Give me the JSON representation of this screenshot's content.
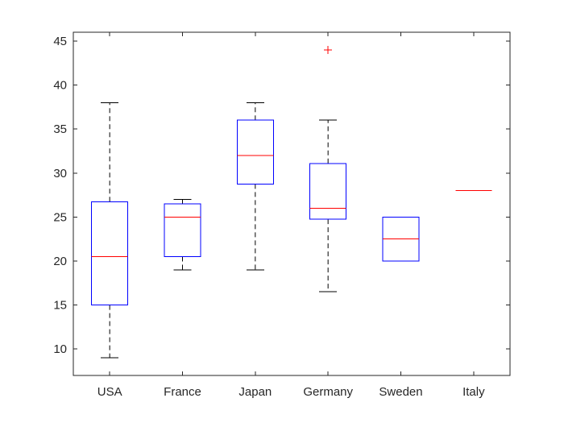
{
  "chart_data": {
    "type": "box",
    "title": "",
    "xlabel": "",
    "ylabel": "",
    "ylim": [
      7,
      46
    ],
    "yticks": [
      10,
      15,
      20,
      25,
      30,
      35,
      40,
      45
    ],
    "grid": false,
    "categories": [
      "USA",
      "France",
      "Japan",
      "Germany",
      "Sweden",
      "Italy"
    ],
    "boxes": [
      {
        "category": "USA",
        "whisker_low": 9,
        "q1": 15,
        "median": 20.5,
        "q3": 26.75,
        "whisker_high": 38,
        "outliers": []
      },
      {
        "category": "France",
        "whisker_low": 19,
        "q1": 20.5,
        "median": 25,
        "q3": 26.5,
        "whisker_high": 27,
        "outliers": []
      },
      {
        "category": "Japan",
        "whisker_low": 19,
        "q1": 28.75,
        "median": 32,
        "q3": 36,
        "whisker_high": 38,
        "outliers": []
      },
      {
        "category": "Germany",
        "whisker_low": 16.5,
        "q1": 24.75,
        "median": 26,
        "q3": 31.1,
        "whisker_high": 36,
        "outliers": [
          44
        ]
      },
      {
        "category": "Sweden",
        "whisker_low": 20,
        "q1": 20,
        "median": 22.5,
        "q3": 25,
        "whisker_high": 25,
        "outliers": []
      },
      {
        "category": "Italy",
        "whisker_low": 28,
        "q1": 28,
        "median": 28,
        "q3": 28,
        "whisker_high": 28,
        "outliers": []
      }
    ],
    "colors": {
      "box": "#0000ff",
      "median": "#ff0000",
      "whisker": "#000000",
      "outlier": "#ff0000",
      "axis": "#262626"
    }
  }
}
